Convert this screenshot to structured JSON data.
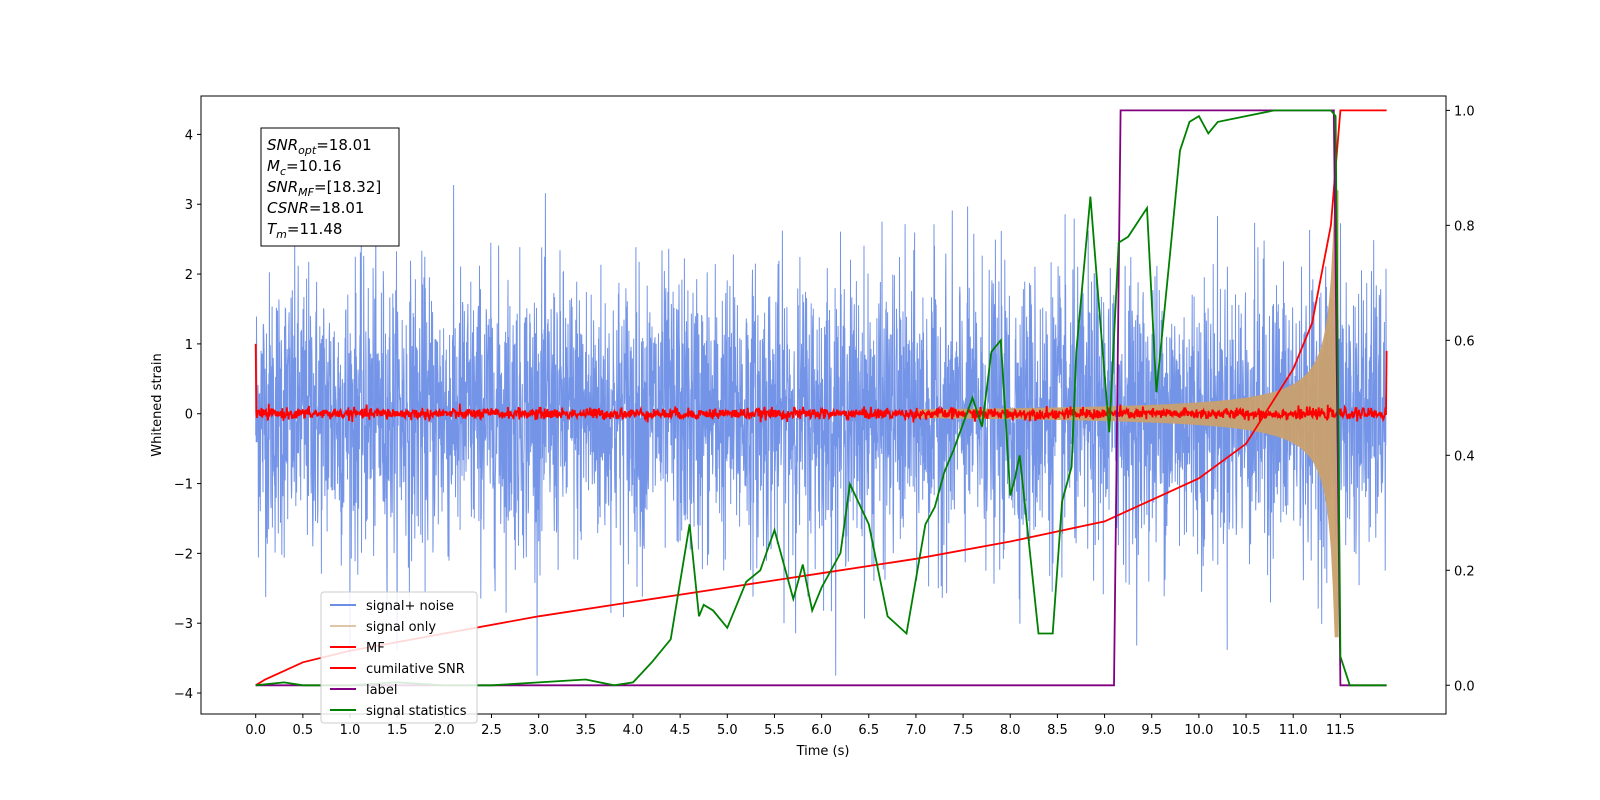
{
  "chart_data": {
    "type": "line",
    "xlabel": "Time (s)",
    "ylabel": "Whitened strain",
    "xlim": [
      -0.58,
      12.62
    ],
    "ylim_left": [
      -4.3,
      4.55
    ],
    "ylim_right": [
      -0.05,
      1.025
    ],
    "x_ticks": [
      "0.0",
      "0.5",
      "1.0",
      "1.5",
      "2.0",
      "2.5",
      "3.0",
      "3.5",
      "4.0",
      "4.5",
      "5.0",
      "5.5",
      "6.0",
      "6.5",
      "7.0",
      "7.5",
      "8.0",
      "8.5",
      "9.0",
      "9.5",
      "10.0",
      "10.5",
      "11.0",
      "11.5"
    ],
    "y_left_ticks": [
      "4",
      "3",
      "2",
      "1",
      "0",
      "−1",
      "−2",
      "−3",
      "−4"
    ],
    "y_right_ticks": [
      "1.0",
      "0.8",
      "0.6",
      "0.4",
      "0.2",
      "0.0"
    ],
    "stats": [
      {
        "sym": "SNR",
        "sub": "opt",
        "val": "=18.01"
      },
      {
        "sym": "M",
        "sub": "c",
        "val": "=10.16"
      },
      {
        "sym": "SNR",
        "sub": "MF",
        "val": "=[18.32]"
      },
      {
        "sym": "CSNR",
        "sub": "",
        "val": "=18.01"
      },
      {
        "sym": "T",
        "sub": "m",
        "val": "=11.48"
      }
    ],
    "series": [
      {
        "name": "signal+ noise",
        "color": "#6d8ee6",
        "axis": "left",
        "kind": "noise",
        "t_range": [
          0,
          11.99
        ],
        "spread": 1.0
      },
      {
        "name": "signal only",
        "color": "#c9a06e",
        "axis": "left",
        "kind": "chirp",
        "t_merge": 11.48
      },
      {
        "name": "MF",
        "color": "#ff0000",
        "axis": "left",
        "kind": "mf",
        "edges": [
          1.0,
          0.9
        ]
      },
      {
        "name": "cumilative SNR",
        "color": "#ff0000",
        "axis": "right",
        "x": [
          0,
          0.1,
          0.5,
          1,
          2,
          3,
          4,
          5,
          6,
          7,
          8,
          9,
          10,
          10.5,
          11,
          11.2,
          11.4,
          11.45,
          11.5,
          11.6,
          11.99
        ],
        "y": [
          0.0,
          0.01,
          0.04,
          0.06,
          0.09,
          0.12,
          0.145,
          0.17,
          0.195,
          0.22,
          0.25,
          0.285,
          0.36,
          0.42,
          0.55,
          0.63,
          0.8,
          0.9,
          1.0,
          1.0,
          1.0
        ]
      },
      {
        "name": "label",
        "color": "#800080",
        "axis": "right",
        "x": [
          0,
          9.1,
          9.17,
          11.43,
          11.5,
          11.99
        ],
        "y": [
          0,
          0,
          1,
          1,
          0,
          0
        ]
      },
      {
        "name": "signal statistics",
        "color": "#008000",
        "axis": "right",
        "x": [
          0.0,
          0.3,
          0.5,
          1.0,
          1.5,
          2.0,
          2.5,
          3.0,
          3.5,
          3.8,
          4.0,
          4.2,
          4.4,
          4.6,
          4.7,
          4.75,
          4.85,
          5.0,
          5.2,
          5.35,
          5.5,
          5.7,
          5.8,
          5.9,
          6.0,
          6.2,
          6.3,
          6.5,
          6.7,
          6.9,
          7.1,
          7.2,
          7.3,
          7.4,
          7.6,
          7.7,
          7.8,
          7.9,
          8.0,
          8.05,
          8.1,
          8.3,
          8.45,
          8.55,
          8.65,
          8.7,
          8.85,
          8.95,
          9.05,
          9.15,
          9.25,
          9.45,
          9.55,
          9.7,
          9.8,
          9.9,
          10.0,
          10.1,
          10.2,
          10.5,
          10.8,
          11.2,
          11.4,
          11.45,
          11.5,
          11.6,
          11.99
        ],
        "y": [
          0.0,
          0.005,
          0.0,
          0.0,
          0.005,
          0.0,
          0.0,
          0.005,
          0.01,
          0.0,
          0.005,
          0.04,
          0.08,
          0.28,
          0.12,
          0.14,
          0.13,
          0.1,
          0.18,
          0.2,
          0.27,
          0.15,
          0.21,
          0.13,
          0.17,
          0.23,
          0.35,
          0.28,
          0.12,
          0.09,
          0.28,
          0.31,
          0.37,
          0.41,
          0.5,
          0.45,
          0.58,
          0.6,
          0.33,
          0.36,
          0.4,
          0.09,
          0.09,
          0.32,
          0.38,
          0.58,
          0.85,
          0.64,
          0.44,
          0.77,
          0.78,
          0.83,
          0.51,
          0.76,
          0.93,
          0.98,
          0.99,
          0.96,
          0.98,
          0.99,
          1.0,
          1.0,
          1.0,
          0.99,
          0.05,
          0.0,
          0.0
        ]
      }
    ],
    "legend_position": "lower-left"
  }
}
